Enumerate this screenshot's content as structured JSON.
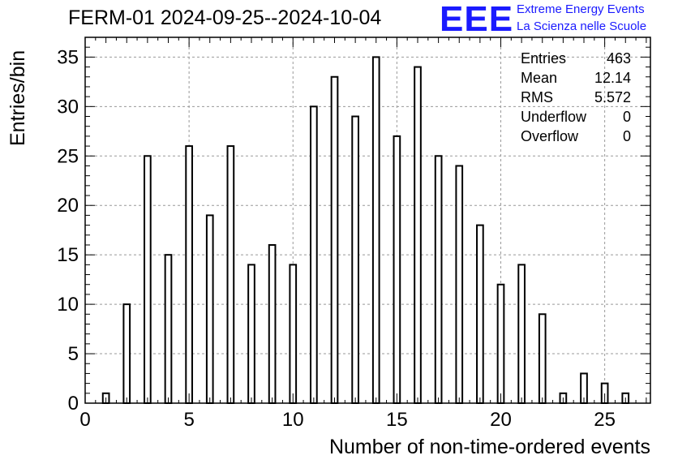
{
  "header": {
    "title": "FERM-01 2024-09-25--2024-10-04"
  },
  "logo": {
    "mark": "EEE",
    "line1": "Extreme Energy Events",
    "line2": "La Scienza nelle Scuole",
    "color": "#1a1aff"
  },
  "stats": [
    {
      "label": "Entries",
      "value": "463"
    },
    {
      "label": "Mean",
      "value": "12.14"
    },
    {
      "label": "RMS",
      "value": "5.572"
    },
    {
      "label": "Underflow",
      "value": "0"
    },
    {
      "label": "Overflow",
      "value": "0"
    }
  ],
  "chart_data": {
    "type": "bar",
    "title": "FERM-01 2024-09-25--2024-10-04",
    "xlabel": "Number of non-time-ordered events",
    "ylabel": "Entries/bin",
    "xlim": [
      0,
      27.2
    ],
    "ylim": [
      0,
      37
    ],
    "x_ticks": [
      0,
      5,
      10,
      15,
      20,
      25
    ],
    "y_ticks": [
      0,
      5,
      10,
      15,
      20,
      25,
      30,
      35
    ],
    "grid": true,
    "bar_color": "#ffffff",
    "edge_color": "#000000",
    "x": [
      1,
      2,
      3,
      4,
      5,
      6,
      7,
      8,
      9,
      10,
      11,
      12,
      13,
      14,
      15,
      16,
      17,
      18,
      19,
      20,
      21,
      22,
      23,
      24,
      25,
      26
    ],
    "values": [
      1,
      10,
      25,
      15,
      26,
      19,
      26,
      14,
      16,
      14,
      30,
      33,
      29,
      35,
      27,
      34,
      25,
      24,
      18,
      12,
      14,
      9,
      1,
      3,
      2,
      1
    ]
  }
}
